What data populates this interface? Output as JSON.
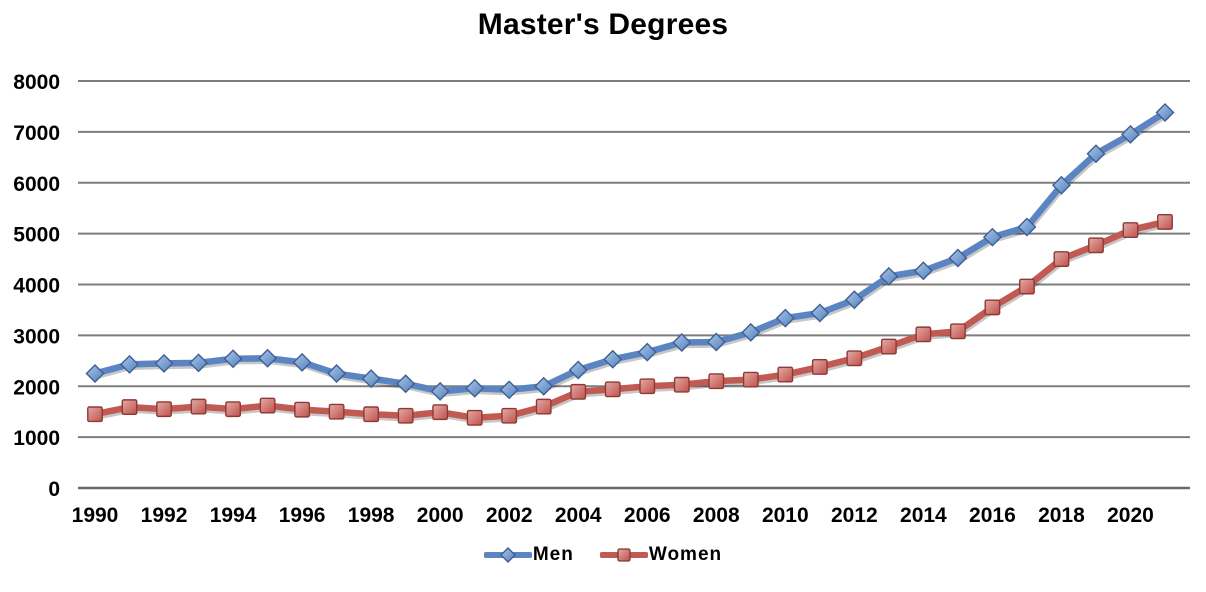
{
  "chart_data": {
    "type": "line",
    "title": "Master's Degrees",
    "x": [
      1990,
      1991,
      1992,
      1993,
      1994,
      1995,
      1996,
      1997,
      1998,
      1999,
      2000,
      2001,
      2002,
      2003,
      2004,
      2005,
      2006,
      2007,
      2008,
      2009,
      2010,
      2011,
      2012,
      2013,
      2014,
      2015,
      2016,
      2017,
      2018,
      2019,
      2020,
      2021
    ],
    "x_tick_labels": [
      "1990",
      "1992",
      "1994",
      "1996",
      "1998",
      "2000",
      "2002",
      "2004",
      "2006",
      "2008",
      "2010",
      "2012",
      "2014",
      "2016",
      "2018",
      "2020"
    ],
    "y_ticks": [
      0,
      1000,
      2000,
      3000,
      4000,
      5000,
      6000,
      7000,
      8000
    ],
    "y_tick_labels": [
      "0",
      "1000",
      "2000",
      "3000",
      "4000",
      "5000",
      "6000",
      "7000",
      "8000"
    ],
    "ylim": [
      0,
      8000
    ],
    "grid": "horizontal",
    "gridline_color": "#7d7d7d",
    "legend_position": "bottom",
    "series": [
      {
        "name": "Men",
        "marker": "diamond",
        "color": "#4F81BD",
        "line_color": "#5b84c2",
        "marker_fill_light": "#adc6e8",
        "marker_fill_dark": "#4f81bd",
        "marker_stroke": "#3f5f91",
        "values": [
          2250,
          2430,
          2450,
          2460,
          2540,
          2550,
          2470,
          2250,
          2150,
          2050,
          1900,
          1960,
          1930,
          2000,
          2320,
          2530,
          2670,
          2860,
          2870,
          3060,
          3340,
          3440,
          3700,
          4160,
          4270,
          4520,
          4930,
          5130,
          5950,
          6570,
          6950,
          7380
        ]
      },
      {
        "name": "Women",
        "marker": "square",
        "color": "#C0504D",
        "line_color": "#c05a52",
        "marker_fill_light": "#e3aba4",
        "marker_fill_dark": "#c0504d",
        "marker_stroke": "#8e3a34",
        "values": [
          1450,
          1590,
          1550,
          1600,
          1550,
          1620,
          1540,
          1500,
          1450,
          1420,
          1490,
          1380,
          1420,
          1600,
          1890,
          1940,
          2000,
          2030,
          2100,
          2130,
          2230,
          2380,
          2550,
          2780,
          3020,
          3080,
          3550,
          3960,
          4500,
          4770,
          5070,
          5230
        ]
      }
    ]
  }
}
